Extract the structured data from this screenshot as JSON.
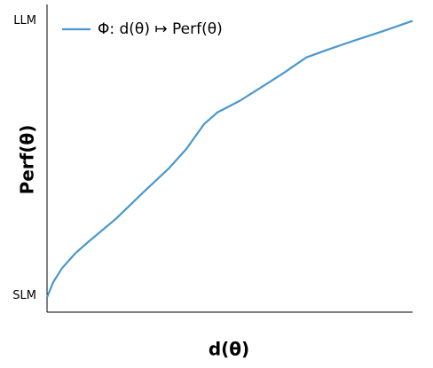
{
  "chart_data": {
    "type": "line",
    "xlabel": "d(θ)",
    "ylabel": "Perf(θ)",
    "x": [
      0,
      0.017,
      0.041,
      0.078,
      0.114,
      0.187,
      0.26,
      0.333,
      0.381,
      0.43,
      0.466,
      0.527,
      0.6,
      0.649,
      0.709,
      0.769,
      0.842,
      0.915,
      1
    ],
    "series": [
      {
        "name": "Φ: d(θ) ↦ Perf(θ)",
        "color": "#4a98cf",
        "values": [
          -0.006,
          0.049,
          0.1,
          0.155,
          0.197,
          0.278,
          0.372,
          0.463,
          0.534,
          0.625,
          0.667,
          0.709,
          0.77,
          0.812,
          0.867,
          0.896,
          0.929,
          0.961,
          1.0
        ]
      }
    ],
    "xlim": [
      0,
      1
    ],
    "ylim": [
      -0.06,
      1.06
    ],
    "yticks": [
      {
        "value": 0,
        "label": "SLM"
      },
      {
        "value": 1,
        "label": "LLM"
      }
    ],
    "legend": "upper left",
    "grid": false
  }
}
